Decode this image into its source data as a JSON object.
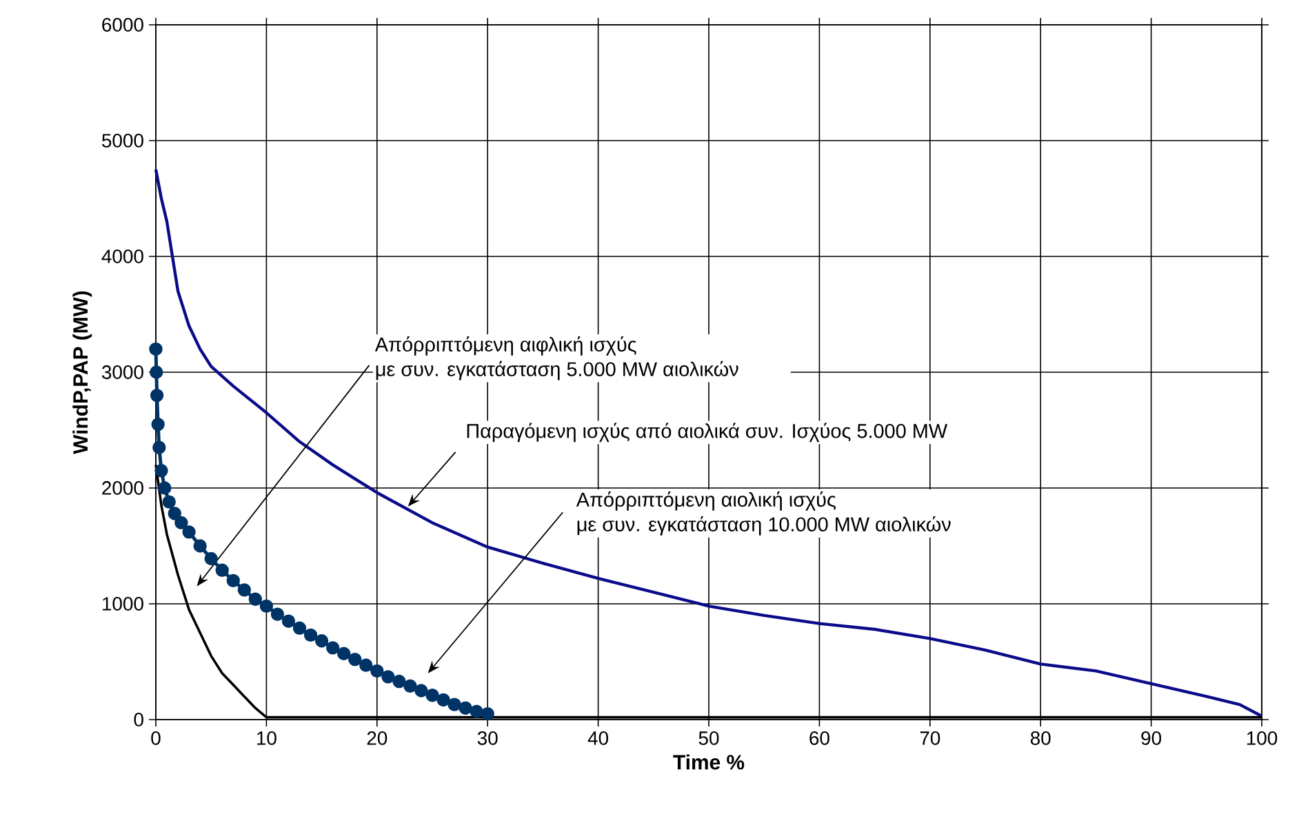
{
  "chart_data": {
    "type": "line",
    "xlabel": "Time %",
    "ylabel": "WindP,PAP (MW)",
    "xlim": [
      0,
      100
    ],
    "ylim": [
      0,
      6000
    ],
    "xticks": [
      0,
      10,
      20,
      30,
      40,
      50,
      60,
      70,
      80,
      90,
      100
    ],
    "yticks": [
      0,
      1000,
      2000,
      3000,
      4000,
      5000,
      6000
    ],
    "grid": true,
    "series": [
      {
        "color": "#0b0b8a",
        "x": [
          0,
          0.5,
          1,
          2,
          3,
          4,
          5,
          7,
          10,
          13,
          16,
          20,
          25,
          30,
          35,
          40,
          45,
          50,
          55,
          60,
          65,
          70,
          75,
          80,
          85,
          90,
          95,
          98,
          100
        ],
        "values": [
          4750,
          4500,
          4300,
          3700,
          3400,
          3200,
          3050,
          2880,
          2650,
          2400,
          2200,
          1960,
          1700,
          1490,
          1350,
          1220,
          1100,
          980,
          900,
          830,
          780,
          700,
          600,
          480,
          420,
          310,
          200,
          130,
          30
        ]
      },
      {
        "color": "#003366",
        "marker": "circle",
        "x": [
          0,
          0.05,
          0.1,
          0.2,
          0.3,
          0.5,
          0.8,
          1.2,
          1.7,
          2.3,
          3,
          4,
          5,
          6,
          7,
          8,
          9,
          10,
          11,
          12,
          13,
          14,
          15,
          16,
          17,
          18,
          19,
          20,
          21,
          22,
          23,
          24,
          25,
          26,
          27,
          28,
          29,
          30
        ],
        "values": [
          3200,
          3000,
          2800,
          2550,
          2350,
          2150,
          2000,
          1880,
          1780,
          1700,
          1620,
          1500,
          1390,
          1290,
          1200,
          1120,
          1040,
          980,
          910,
          850,
          790,
          730,
          680,
          620,
          570,
          520,
          470,
          420,
          370,
          330,
          290,
          250,
          210,
          170,
          130,
          100,
          70,
          50
        ]
      },
      {
        "color": "#000000",
        "x": [
          0,
          0.5,
          1,
          2,
          3,
          4,
          5,
          6,
          7,
          8,
          9,
          10,
          100
        ],
        "values": [
          2200,
          1850,
          1600,
          1250,
          950,
          750,
          550,
          400,
          300,
          200,
          100,
          20,
          20
        ]
      }
    ],
    "annotations": [
      "Απόρριπτόμενη αιφλική ισχύς με συν. εγκατάσταση 5.000 MW αιολικών",
      {
        "text": "Παραγόμενη ισχύς από αιολικά συν. Ισχύος 5.000 MW",
        "x": 22.8,
        "y": 1840
      },
      "Απόρριπτόμενη αιολική ισχύς με συν. εγκατάσταση 10.000 MW αιολικών"
    ]
  }
}
